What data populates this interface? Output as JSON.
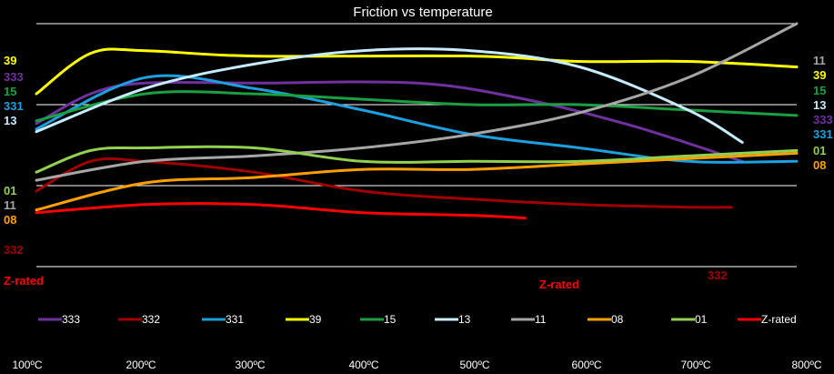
{
  "chart_data": {
    "type": "line",
    "title": "Friction vs temperature",
    "xlabel": "",
    "ylabel": "",
    "x": [
      100,
      200,
      300,
      400,
      500,
      600,
      700,
      800
    ],
    "xtick_labels": [
      "100ºC",
      "200ºC",
      "300ºC",
      "400ºC",
      "500ºC",
      "600ºC",
      "700ºC",
      "800ºC"
    ],
    "xlim": [
      100,
      800
    ],
    "ylim": [
      0,
      0.9
    ],
    "yaxis_shown": false,
    "grid": "horizontal",
    "legend_position": "bottom",
    "series": [
      {
        "name": "333",
        "color": "#7030a0",
        "left_label": "333",
        "right_label": "333",
        "points": [
          [
            100,
            0.53
          ],
          [
            150,
            0.64
          ],
          [
            200,
            0.68
          ],
          [
            300,
            0.68
          ],
          [
            450,
            0.68
          ],
          [
            550,
            0.62
          ],
          [
            650,
            0.52
          ],
          [
            750,
            0.39
          ]
        ]
      },
      {
        "name": "332",
        "color": "#a00000",
        "left_label": "332",
        "right_label": "332",
        "points": [
          [
            100,
            0.28
          ],
          [
            150,
            0.39
          ],
          [
            200,
            0.39
          ],
          [
            300,
            0.35
          ],
          [
            400,
            0.28
          ],
          [
            500,
            0.25
          ],
          [
            600,
            0.23
          ],
          [
            700,
            0.22
          ],
          [
            740,
            0.22
          ]
        ]
      },
      {
        "name": "331",
        "color": "#1ca0e0",
        "left_label": "331",
        "right_label": "331",
        "points": [
          [
            100,
            0.51
          ],
          [
            200,
            0.7
          ],
          [
            300,
            0.66
          ],
          [
            400,
            0.58
          ],
          [
            500,
            0.49
          ],
          [
            600,
            0.44
          ],
          [
            700,
            0.39
          ],
          [
            800,
            0.39
          ]
        ]
      },
      {
        "name": "39",
        "color": "#ffff00",
        "left_label": "39",
        "right_label": "39",
        "points": [
          [
            100,
            0.64
          ],
          [
            150,
            0.79
          ],
          [
            200,
            0.8
          ],
          [
            300,
            0.78
          ],
          [
            500,
            0.78
          ],
          [
            600,
            0.76
          ],
          [
            700,
            0.76
          ],
          [
            800,
            0.74
          ]
        ]
      },
      {
        "name": "15",
        "color": "#1aa040",
        "left_label": "15",
        "right_label": "15",
        "points": [
          [
            100,
            0.54
          ],
          [
            200,
            0.64
          ],
          [
            300,
            0.64
          ],
          [
            400,
            0.62
          ],
          [
            500,
            0.6
          ],
          [
            600,
            0.6
          ],
          [
            700,
            0.58
          ],
          [
            800,
            0.56
          ]
        ]
      },
      {
        "name": "13",
        "color": "#c8ecff",
        "left_label": "13",
        "right_label": "13",
        "points": [
          [
            100,
            0.5
          ],
          [
            200,
            0.66
          ],
          [
            300,
            0.75
          ],
          [
            400,
            0.8
          ],
          [
            500,
            0.8
          ],
          [
            600,
            0.74
          ],
          [
            700,
            0.58
          ],
          [
            750,
            0.46
          ]
        ]
      },
      {
        "name": "11",
        "color": "#a6a6a6",
        "left_label": "11",
        "right_label": "11",
        "points": [
          [
            100,
            0.32
          ],
          [
            200,
            0.39
          ],
          [
            300,
            0.41
          ],
          [
            400,
            0.44
          ],
          [
            500,
            0.49
          ],
          [
            600,
            0.57
          ],
          [
            700,
            0.7
          ],
          [
            800,
            0.9
          ]
        ]
      },
      {
        "name": "08",
        "color": "#ffa000",
        "left_label": "08",
        "right_label": "08",
        "points": [
          [
            100,
            0.21
          ],
          [
            200,
            0.31
          ],
          [
            300,
            0.33
          ],
          [
            400,
            0.36
          ],
          [
            500,
            0.36
          ],
          [
            600,
            0.38
          ],
          [
            700,
            0.4
          ],
          [
            800,
            0.42
          ]
        ]
      },
      {
        "name": "01",
        "color": "#92d050",
        "left_label": "01",
        "right_label": "01",
        "points": [
          [
            100,
            0.35
          ],
          [
            150,
            0.43
          ],
          [
            200,
            0.44
          ],
          [
            300,
            0.44
          ],
          [
            400,
            0.39
          ],
          [
            500,
            0.39
          ],
          [
            600,
            0.39
          ],
          [
            700,
            0.41
          ],
          [
            800,
            0.43
          ]
        ]
      },
      {
        "name": "Z-rated",
        "color": "#ff0000",
        "left_label": "Z-rated",
        "right_label": "Z-rated",
        "points": [
          [
            100,
            0.2
          ],
          [
            200,
            0.23
          ],
          [
            300,
            0.23
          ],
          [
            400,
            0.2
          ],
          [
            500,
            0.19
          ],
          [
            550,
            0.18
          ]
        ]
      }
    ]
  }
}
